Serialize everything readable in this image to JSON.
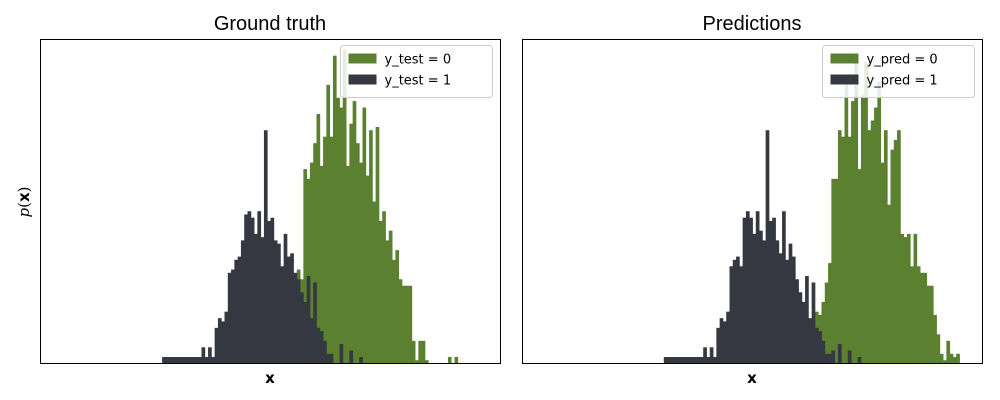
{
  "chart_data": [
    {
      "type": "histogram",
      "title": "Ground truth",
      "xlabel": "x",
      "ylabel": "p(x)",
      "bin_start": 1,
      "bin_width": 1,
      "xlim": [
        -12,
        128
      ],
      "ylim": [
        0,
        100
      ],
      "legend": "top-right",
      "series": [
        {
          "name": "y_test = 0",
          "color": "#5b8030",
          "values": [
            0,
            0,
            0,
            0,
            0,
            0,
            0,
            0,
            0,
            0,
            0,
            0,
            0,
            0,
            0,
            0,
            0,
            0,
            0,
            0,
            0,
            0,
            0,
            0,
            0,
            0,
            0,
            0,
            0,
            0,
            0,
            0,
            0,
            0,
            0,
            0,
            0,
            0,
            0,
            0,
            0,
            0,
            0,
            0,
            0,
            0,
            0,
            0,
            0,
            0,
            0,
            0,
            0,
            0,
            0,
            0,
            0,
            0,
            0,
            0,
            0,
            0,
            11,
            15,
            15,
            29,
            26,
            60,
            57,
            62,
            68,
            77,
            61,
            70,
            86,
            70,
            95,
            82,
            79,
            97,
            61,
            74,
            81,
            68,
            62,
            79,
            58,
            72,
            50,
            73,
            44,
            47,
            38,
            41,
            32,
            35,
            26,
            24,
            24,
            24,
            7,
            1,
            7,
            7,
            1,
            0,
            0,
            0,
            0,
            0,
            0,
            2,
            0,
            2
          ]
        },
        {
          "name": "y_test = 1",
          "color": "#353840",
          "values": [
            0,
            0,
            0,
            0,
            0,
            0,
            0,
            0,
            0,
            0,
            0,
            0,
            0,
            0,
            0,
            0,
            0,
            0,
            0,
            0,
            0,
            0,
            0,
            0,
            2,
            2,
            2,
            2,
            2,
            2,
            2,
            2,
            2,
            2,
            2,
            2,
            5,
            2,
            5,
            2,
            11,
            14,
            13,
            16,
            28,
            29,
            32,
            33,
            38,
            46,
            47,
            45,
            40,
            47,
            39,
            72,
            44,
            45,
            38,
            37,
            30,
            40,
            33,
            34,
            28,
            26,
            22,
            19,
            27,
            14,
            25,
            11,
            10,
            7,
            3,
            3,
            0,
            0,
            6,
            0,
            0,
            4,
            0,
            0,
            2
          ]
        }
      ]
    },
    {
      "type": "histogram",
      "title": "Predictions",
      "xlabel": "x",
      "ylabel": "",
      "bin_start": 1,
      "bin_width": 1,
      "xlim": [
        -12,
        128
      ],
      "ylim": [
        0,
        100
      ],
      "legend": "top-right",
      "series": [
        {
          "name": "y_pred = 0",
          "color": "#5b8030",
          "values": [
            0,
            0,
            0,
            0,
            0,
            0,
            0,
            0,
            0,
            0,
            0,
            0,
            0,
            0,
            0,
            0,
            0,
            0,
            0,
            0,
            0,
            0,
            0,
            0,
            0,
            0,
            0,
            0,
            0,
            0,
            0,
            0,
            0,
            0,
            0,
            0,
            0,
            0,
            0,
            0,
            0,
            0,
            0,
            0,
            0,
            0,
            0,
            0,
            0,
            0,
            0,
            0,
            0,
            0,
            0,
            0,
            0,
            0,
            0,
            0,
            0,
            0,
            0,
            0,
            0,
            0,
            0,
            0,
            0,
            0,
            0,
            0,
            0,
            0,
            0,
            0,
            16,
            15,
            19,
            25,
            31,
            57,
            57,
            72,
            70,
            89,
            70,
            81,
            93,
            60,
            83,
            93,
            72,
            75,
            79,
            87,
            62,
            72,
            49,
            66,
            69,
            72,
            40,
            39,
            40,
            30,
            40,
            30,
            28,
            28,
            24,
            24,
            15,
            9,
            3,
            1,
            7,
            3,
            2,
            3
          ]
        },
        {
          "name": "y_pred = 1",
          "color": "#353840",
          "values": [
            0,
            0,
            0,
            0,
            0,
            0,
            0,
            0,
            0,
            0,
            0,
            0,
            0,
            0,
            0,
            0,
            0,
            0,
            0,
            0,
            0,
            0,
            0,
            0,
            0,
            0,
            0,
            0,
            0,
            0,
            2,
            2,
            2,
            2,
            2,
            2,
            2,
            2,
            2,
            2,
            2,
            2,
            5,
            2,
            5,
            2,
            11,
            14,
            13,
            16,
            30,
            32,
            33,
            30,
            45,
            47,
            45,
            40,
            47,
            41,
            38,
            72,
            44,
            45,
            38,
            34,
            47,
            32,
            37,
            33,
            26,
            22,
            19,
            27,
            14,
            25,
            11,
            10,
            7,
            3,
            3,
            4,
            0,
            6,
            0,
            0,
            4,
            0,
            0,
            2
          ]
        }
      ]
    }
  ]
}
